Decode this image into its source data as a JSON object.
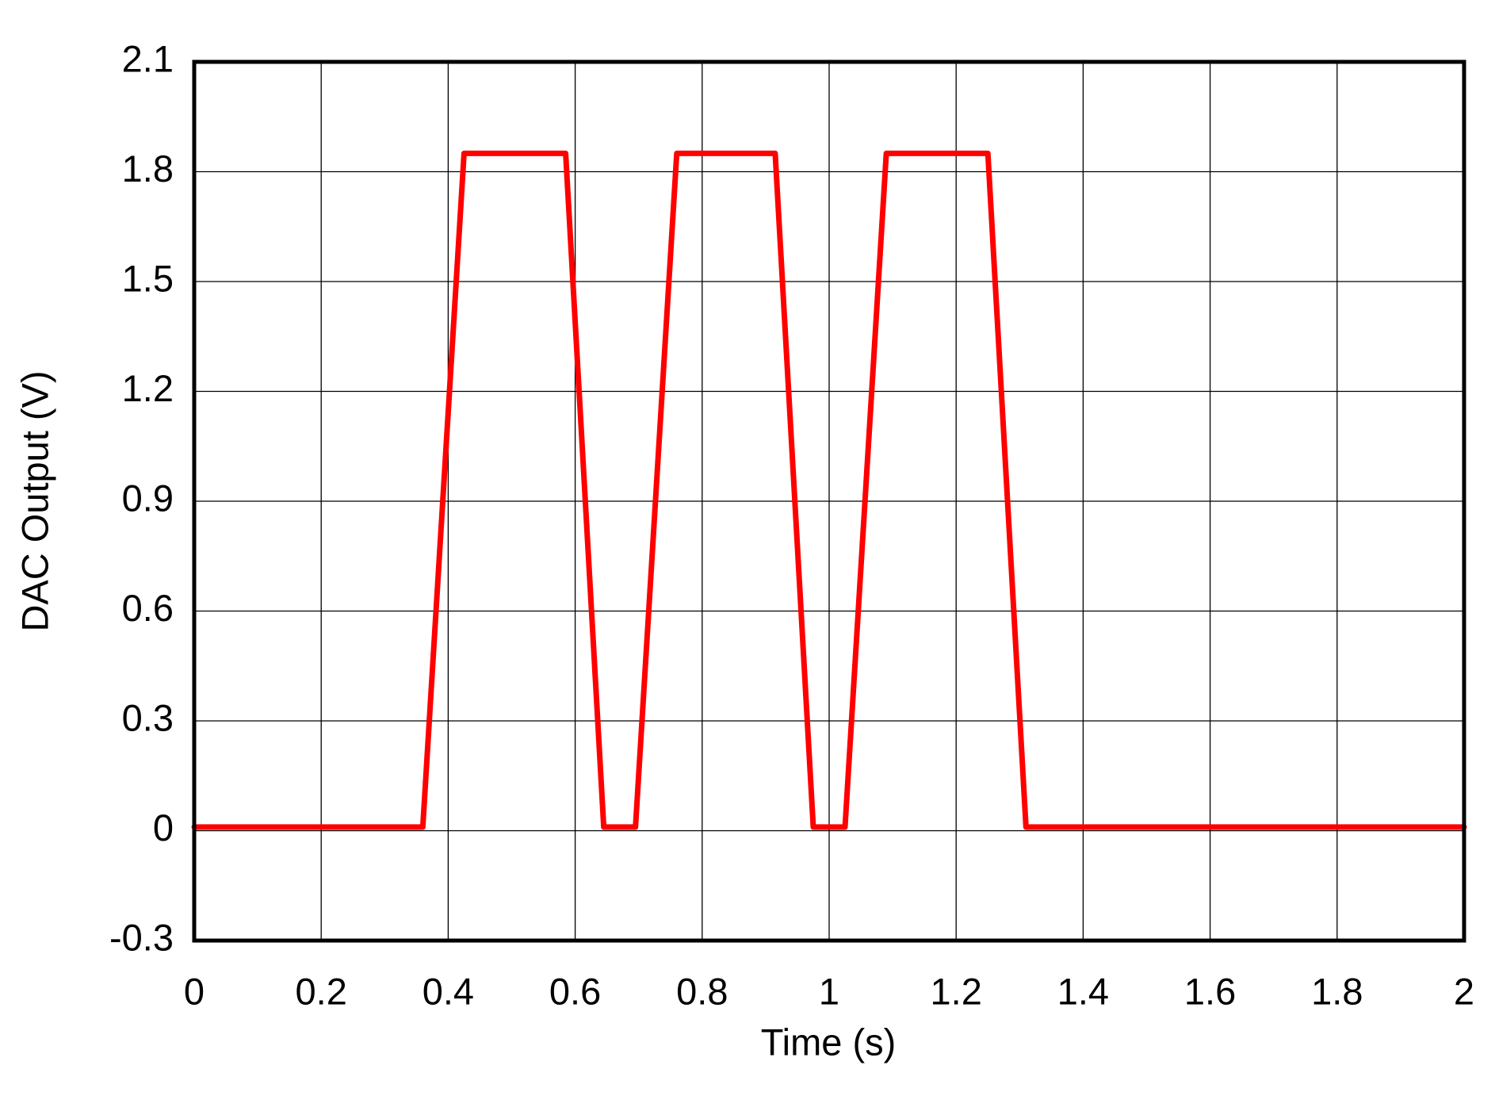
{
  "chart_data": {
    "type": "line",
    "x_label": "Time (s)",
    "y_label": "DAC Output (V)",
    "x": [
      0,
      0.36,
      0.425,
      0.585,
      0.645,
      0.695,
      0.76,
      0.915,
      0.975,
      1.025,
      1.09,
      1.25,
      1.31,
      2
    ],
    "series": [
      {
        "color": "#ff0000",
        "values": [
          0.01,
          0.01,
          1.85,
          1.85,
          0.01,
          0.01,
          1.85,
          1.85,
          0.01,
          0.01,
          1.85,
          1.85,
          0.01,
          0.01
        ]
      }
    ],
    "xlim": [
      0,
      2
    ],
    "xticks": [
      0,
      0.2,
      0.4,
      0.6,
      0.8,
      1,
      1.2,
      1.4,
      1.6,
      1.8,
      2
    ],
    "ylim": [
      -0.3,
      2.1
    ],
    "yticks": [
      -0.3,
      0,
      0.3,
      0.6,
      0.9,
      1.2,
      1.5,
      1.8,
      2.1
    ],
    "grid": true
  }
}
